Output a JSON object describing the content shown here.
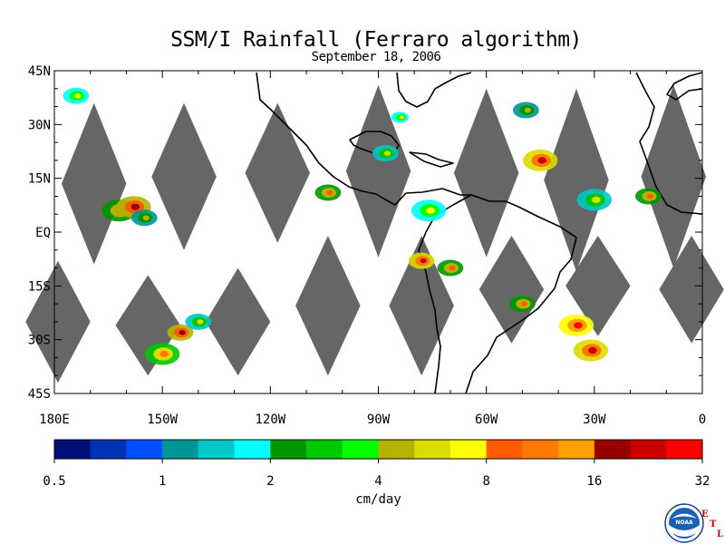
{
  "title": "SSM/I Rainfall (Ferraro algorithm)",
  "subtitle": "September 18, 2006",
  "map": {
    "lat_labels": [
      "45N",
      "30N",
      "15N",
      "EQ",
      "15S",
      "30S",
      "45S"
    ],
    "lat_values": [
      45,
      30,
      15,
      0,
      -15,
      -30,
      -45
    ],
    "lon_labels": [
      "180E",
      "150W",
      "120W",
      "90W",
      "60W",
      "30W",
      "0"
    ],
    "lon_values": [
      -180,
      -150,
      -120,
      -90,
      -60,
      -30,
      0
    ],
    "lat_range": [
      -45,
      45
    ],
    "lon_range": [
      -180,
      0
    ],
    "gap_color": "#666666"
  },
  "colorbar": {
    "colors": [
      "#000f78",
      "#0032b4",
      "#0050ff",
      "#009696",
      "#00c8c8",
      "#00ffff",
      "#009600",
      "#00c800",
      "#00ff00",
      "#b4b400",
      "#dcdc00",
      "#ffff00",
      "#ff5a00",
      "#ff7800",
      "#ffa000",
      "#960000",
      "#c80000",
      "#ff0000"
    ],
    "tick_labels": [
      "0.5",
      "1",
      "2",
      "4",
      "8",
      "16",
      "32"
    ],
    "tick_values": [
      0.5,
      1,
      2,
      4,
      8,
      16,
      32
    ],
    "range": [
      0.5,
      32
    ],
    "scale": "log2",
    "unit_label": "cm/day"
  },
  "logo": {
    "text": "NOAA",
    "etl_letters": [
      "E",
      "T",
      "L"
    ]
  }
}
